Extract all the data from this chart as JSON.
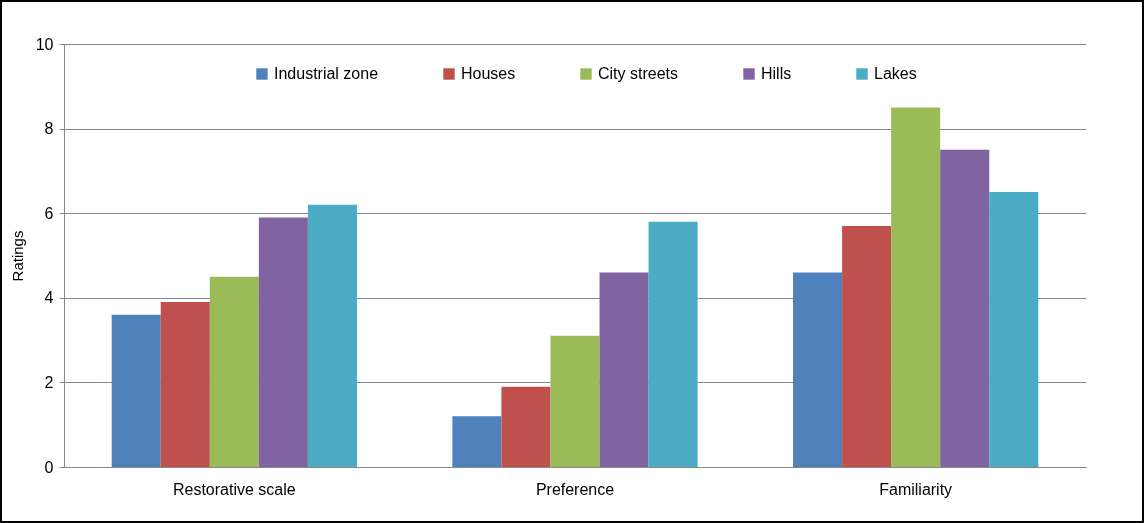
{
  "chart_data": {
    "type": "bar",
    "ylabel": "Ratings",
    "categories": [
      "Restorative scale",
      "Preference",
      "Familiarity"
    ],
    "series": [
      {
        "name": "Industrial zone",
        "color": "#4f81bd",
        "values": [
          3.6,
          1.2,
          4.6
        ]
      },
      {
        "name": "Houses",
        "color": "#c0504d",
        "values": [
          3.9,
          1.9,
          5.7
        ]
      },
      {
        "name": "City streets",
        "color": "#9bbb59",
        "values": [
          4.5,
          3.1,
          8.5
        ]
      },
      {
        "name": "Hills",
        "color": "#8064a2",
        "values": [
          5.9,
          4.6,
          7.5
        ]
      },
      {
        "name": "Lakes",
        "color": "#4bacc6",
        "values": [
          6.2,
          5.8,
          6.5
        ]
      }
    ],
    "ylim": [
      0,
      10
    ],
    "yticks": [
      0,
      2,
      4,
      6,
      8,
      10
    ],
    "grid": "y",
    "legend": "top"
  }
}
